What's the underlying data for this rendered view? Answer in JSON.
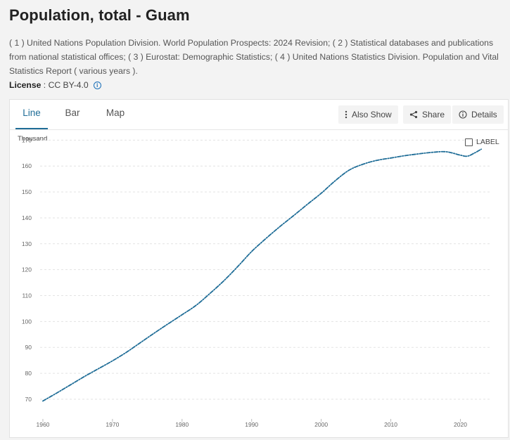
{
  "header": {
    "title": "Population, total - Guam",
    "source": "( 1 ) United Nations Population Division. World Population Prospects: 2024 Revision; ( 2 ) Statistical databases and publications from national statistical offices; ( 3 ) Eurostat: Demographic Statistics; ( 4 ) United Nations Statistics Division. Population and Vital Statistics Report ( various years ).",
    "license_label": "License",
    "license_sep": " : ",
    "license_value": "CC BY-4.0"
  },
  "tabs": [
    {
      "label": "Line",
      "active": true
    },
    {
      "label": "Bar",
      "active": false
    },
    {
      "label": "Map",
      "active": false
    }
  ],
  "toolbar": {
    "also_show": "Also Show",
    "share": "Share",
    "details": "Details"
  },
  "label_toggle": "LABEL",
  "colors": {
    "line": "#1f6d97",
    "active_tab": "#1f6d97",
    "info": "#1a6fb8"
  },
  "chart_data": {
    "type": "line",
    "unit_label": "Thousand",
    "x": [
      1960,
      1962,
      1964,
      1966,
      1968,
      1970,
      1972,
      1974,
      1976,
      1978,
      1980,
      1982,
      1984,
      1986,
      1988,
      1990,
      1992,
      1994,
      1996,
      1998,
      2000,
      2002,
      2004,
      2006,
      2008,
      2010,
      2012,
      2014,
      2016,
      2018,
      2020,
      2021,
      2022,
      2023
    ],
    "y": [
      69.3,
      72.4,
      75.6,
      78.8,
      81.8,
      84.8,
      88.1,
      91.8,
      95.5,
      99.1,
      102.6,
      106.2,
      110.8,
      115.7,
      121.2,
      127.0,
      131.9,
      136.5,
      140.8,
      145.2,
      149.5,
      154.3,
      158.4,
      160.7,
      162.2,
      163.1,
      164.0,
      164.7,
      165.3,
      165.5,
      164.2,
      163.8,
      165.0,
      166.5
    ],
    "x_ticks": [
      1960,
      1970,
      1980,
      1990,
      2000,
      2010,
      2020
    ],
    "y_ticks": [
      70,
      80,
      90,
      100,
      110,
      120,
      130,
      140,
      150,
      160,
      170
    ],
    "xlim": [
      1959.6,
      2024.5
    ],
    "ylim": [
      67,
      172
    ],
    "line_style": "dash-dot",
    "grid": "horizontal dashed"
  }
}
